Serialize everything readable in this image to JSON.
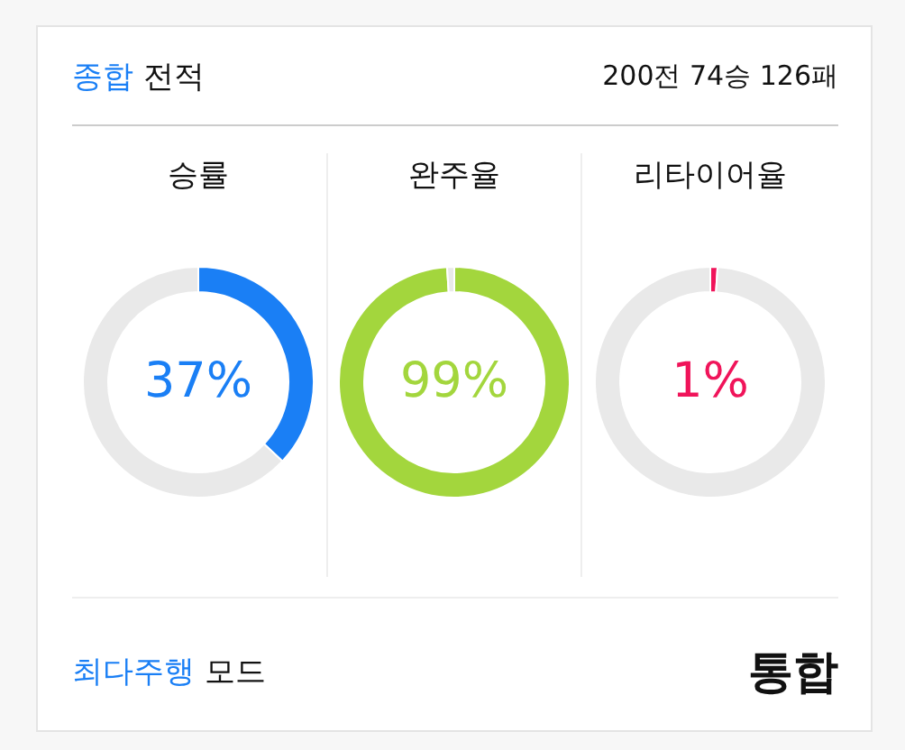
{
  "chart_data": [
    {
      "type": "other",
      "title": "종합 전적",
      "subtitle": "200전 74승 126패"
    },
    {
      "type": "donut",
      "title": "승률",
      "categories": [
        null,
        null
      ],
      "values": [
        37,
        63
      ],
      "colors": [
        "#1a7ff5",
        "#e9e9e9"
      ],
      "annotations": [
        "37%"
      ]
    },
    {
      "type": "donut",
      "title": "완주율",
      "categories": [
        null,
        null
      ],
      "values": [
        99,
        1
      ],
      "colors": [
        "#a3d63d",
        "#e9e9e9"
      ],
      "annotations": [
        "99%"
      ]
    },
    {
      "type": "donut",
      "title": "리타이어율",
      "categories": [
        null,
        null
      ],
      "values": [
        1,
        99
      ],
      "colors": [
        "#f0145a",
        "#e9e9e9"
      ],
      "annotations": [
        "1%"
      ]
    },
    {
      "type": "other",
      "title": "최다주행 모드",
      "annotations": [
        "통합"
      ]
    }
  ]
}
